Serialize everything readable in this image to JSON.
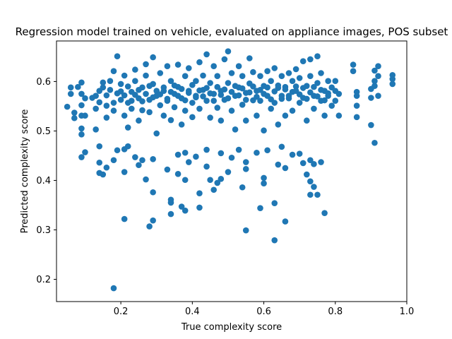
{
  "chart_data": {
    "type": "scatter",
    "title": "Regression model trained on vehicle, evaluated on appliance images, POS subset",
    "xlabel": "True complexity score",
    "ylabel": "Predicted complexity score",
    "xlim": [
      0.02,
      1.0
    ],
    "ylim": [
      0.155,
      0.682
    ],
    "xticks": [
      0.2,
      0.4,
      0.6,
      0.8,
      1.0
    ],
    "xtick_labels": [
      "0.2",
      "0.4",
      "0.6",
      "0.8",
      "1.0"
    ],
    "yticks": [
      0.2,
      0.3,
      0.4,
      0.5,
      0.6
    ],
    "ytick_labels": [
      "0.2",
      "0.3",
      "0.4",
      "0.5",
      "0.6"
    ],
    "grid": false,
    "marker_color": "#1f77b4",
    "series": [
      {
        "points": [
          [
            0.18,
            0.182
          ],
          [
            0.63,
            0.279
          ],
          [
            0.28,
            0.307
          ],
          [
            0.55,
            0.299
          ],
          [
            0.66,
            0.317
          ],
          [
            0.21,
            0.322
          ],
          [
            0.77,
            0.334
          ],
          [
            0.38,
            0.339
          ],
          [
            0.37,
            0.347
          ],
          [
            0.42,
            0.345
          ],
          [
            0.59,
            0.344
          ],
          [
            0.29,
            0.319
          ],
          [
            0.34,
            0.332
          ],
          [
            0.34,
            0.355
          ],
          [
            0.34,
            0.361
          ],
          [
            0.63,
            0.354
          ],
          [
            0.29,
            0.376
          ],
          [
            0.42,
            0.374
          ],
          [
            0.73,
            0.371
          ],
          [
            0.75,
            0.371
          ],
          [
            0.46,
            0.381
          ],
          [
            0.54,
            0.386
          ],
          [
            0.47,
            0.395
          ],
          [
            0.38,
            0.401
          ],
          [
            0.45,
            0.401
          ],
          [
            0.27,
            0.402
          ],
          [
            0.6,
            0.394
          ],
          [
            0.6,
            0.405
          ],
          [
            0.36,
            0.413
          ],
          [
            0.48,
            0.403
          ],
          [
            0.5,
            0.417
          ],
          [
            0.55,
            0.423
          ],
          [
            0.14,
            0.415
          ],
          [
            0.16,
            0.426
          ],
          [
            0.21,
            0.417
          ],
          [
            0.25,
            0.431
          ],
          [
            0.14,
            0.436
          ],
          [
            0.18,
            0.441
          ],
          [
            0.15,
            0.412
          ],
          [
            0.64,
            0.432
          ],
          [
            0.71,
            0.435
          ],
          [
            0.74,
            0.433
          ],
          [
            0.76,
            0.437
          ],
          [
            0.66,
            0.425
          ],
          [
            0.72,
            0.412
          ],
          [
            0.73,
            0.398
          ],
          [
            0.74,
            0.387
          ],
          [
            0.09,
            0.447
          ],
          [
            0.1,
            0.457
          ],
          [
            0.14,
            0.469
          ],
          [
            0.19,
            0.461
          ],
          [
            0.22,
            0.469
          ],
          [
            0.21,
            0.463
          ],
          [
            0.24,
            0.447
          ],
          [
            0.26,
            0.441
          ],
          [
            0.29,
            0.443
          ],
          [
            0.36,
            0.452
          ],
          [
            0.38,
            0.456
          ],
          [
            0.41,
            0.448
          ],
          [
            0.44,
            0.462
          ],
          [
            0.48,
            0.455
          ],
          [
            0.51,
            0.446
          ],
          [
            0.53,
            0.462
          ],
          [
            0.58,
            0.456
          ],
          [
            0.61,
            0.461
          ],
          [
            0.65,
            0.468
          ],
          [
            0.68,
            0.452
          ],
          [
            0.7,
            0.454
          ],
          [
            0.73,
            0.441
          ],
          [
            0.55,
            0.437
          ],
          [
            0.44,
            0.428
          ],
          [
            0.39,
            0.437
          ],
          [
            0.33,
            0.422
          ],
          [
            0.05,
            0.549
          ],
          [
            0.06,
            0.575
          ],
          [
            0.06,
            0.588
          ],
          [
            0.07,
            0.526
          ],
          [
            0.07,
            0.537
          ],
          [
            0.08,
            0.589
          ],
          [
            0.09,
            0.598
          ],
          [
            0.09,
            0.575
          ],
          [
            0.09,
            0.552
          ],
          [
            0.09,
            0.531
          ],
          [
            0.09,
            0.505
          ],
          [
            0.09,
            0.493
          ],
          [
            0.1,
            0.531
          ],
          [
            0.1,
            0.566
          ],
          [
            0.12,
            0.567
          ],
          [
            0.13,
            0.571
          ],
          [
            0.13,
            0.545
          ],
          [
            0.13,
            0.503
          ],
          [
            0.14,
            0.558
          ],
          [
            0.14,
            0.581
          ],
          [
            0.15,
            0.588
          ],
          [
            0.15,
            0.598
          ],
          [
            0.16,
            0.572
          ],
          [
            0.16,
            0.551
          ],
          [
            0.16,
            0.527
          ],
          [
            0.17,
            0.601
          ],
          [
            0.17,
            0.583
          ],
          [
            0.18,
            0.557
          ],
          [
            0.18,
            0.541
          ],
          [
            0.18,
            0.621
          ],
          [
            0.19,
            0.651
          ],
          [
            0.19,
            0.576
          ],
          [
            0.2,
            0.563
          ],
          [
            0.2,
            0.595
          ],
          [
            0.21,
            0.612
          ],
          [
            0.21,
            0.531
          ],
          [
            0.22,
            0.557
          ],
          [
            0.22,
            0.507
          ],
          [
            0.23,
            0.579
          ],
          [
            0.23,
            0.545
          ],
          [
            0.24,
            0.601
          ],
          [
            0.24,
            0.624
          ],
          [
            0.25,
            0.566
          ],
          [
            0.25,
            0.521
          ],
          [
            0.26,
            0.542
          ],
          [
            0.26,
            0.588
          ],
          [
            0.27,
            0.635
          ],
          [
            0.27,
            0.612
          ],
          [
            0.28,
            0.563
          ],
          [
            0.28,
            0.538
          ],
          [
            0.29,
            0.649
          ],
          [
            0.29,
            0.595
          ],
          [
            0.3,
            0.571
          ],
          [
            0.3,
            0.495
          ],
          [
            0.31,
            0.552
          ],
          [
            0.31,
            0.617
          ],
          [
            0.32,
            0.581
          ],
          [
            0.32,
            0.531
          ],
          [
            0.33,
            0.631
          ],
          [
            0.33,
            0.561
          ],
          [
            0.34,
            0.601
          ],
          [
            0.34,
            0.522
          ],
          [
            0.35,
            0.575
          ],
          [
            0.35,
            0.548
          ],
          [
            0.36,
            0.634
          ],
          [
            0.36,
            0.589
          ],
          [
            0.37,
            0.513
          ],
          [
            0.37,
            0.566
          ],
          [
            0.38,
            0.611
          ],
          [
            0.38,
            0.541
          ],
          [
            0.39,
            0.627
          ],
          [
            0.39,
            0.581
          ],
          [
            0.4,
            0.557
          ],
          [
            0.4,
            0.528
          ],
          [
            0.41,
            0.601
          ],
          [
            0.41,
            0.571
          ],
          [
            0.42,
            0.639
          ],
          [
            0.42,
            0.545
          ],
          [
            0.43,
            0.612
          ],
          [
            0.43,
            0.583
          ],
          [
            0.44,
            0.655
          ],
          [
            0.44,
            0.561
          ],
          [
            0.45,
            0.527
          ],
          [
            0.45,
            0.597
          ],
          [
            0.46,
            0.631
          ],
          [
            0.46,
            0.575
          ],
          [
            0.47,
            0.547
          ],
          [
            0.47,
            0.611
          ],
          [
            0.48,
            0.581
          ],
          [
            0.48,
            0.521
          ],
          [
            0.49,
            0.645
          ],
          [
            0.49,
            0.563
          ],
          [
            0.5,
            0.661
          ],
          [
            0.5,
            0.597
          ],
          [
            0.51,
            0.541
          ],
          [
            0.51,
            0.617
          ],
          [
            0.52,
            0.571
          ],
          [
            0.52,
            0.503
          ],
          [
            0.53,
            0.631
          ],
          [
            0.53,
            0.588
          ],
          [
            0.54,
            0.553
          ],
          [
            0.54,
            0.611
          ],
          [
            0.55,
            0.577
          ],
          [
            0.55,
            0.521
          ],
          [
            0.56,
            0.647
          ],
          [
            0.56,
            0.596
          ],
          [
            0.57,
            0.562
          ],
          [
            0.57,
            0.619
          ],
          [
            0.58,
            0.581
          ],
          [
            0.58,
            0.531
          ],
          [
            0.59,
            0.611
          ],
          [
            0.59,
            0.561
          ],
          [
            0.6,
            0.591
          ],
          [
            0.6,
            0.501
          ],
          [
            0.61,
            0.621
          ],
          [
            0.61,
            0.571
          ],
          [
            0.62,
            0.545
          ],
          [
            0.62,
            0.601
          ],
          [
            0.63,
            0.627
          ],
          [
            0.63,
            0.557
          ],
          [
            0.64,
            0.587
          ],
          [
            0.64,
            0.513
          ],
          [
            0.65,
            0.611
          ],
          [
            0.65,
            0.565
          ],
          [
            0.66,
            0.589
          ],
          [
            0.66,
            0.531
          ],
          [
            0.67,
            0.617
          ],
          [
            0.67,
            0.571
          ],
          [
            0.68,
            0.601
          ],
          [
            0.68,
            0.541
          ],
          [
            0.69,
            0.625
          ],
          [
            0.69,
            0.581
          ],
          [
            0.7,
            0.557
          ],
          [
            0.7,
            0.607
          ],
          [
            0.71,
            0.641
          ],
          [
            0.71,
            0.567
          ],
          [
            0.72,
            0.591
          ],
          [
            0.72,
            0.521
          ],
          [
            0.73,
            0.645
          ],
          [
            0.73,
            0.611
          ],
          [
            0.74,
            0.571
          ],
          [
            0.74,
            0.545
          ],
          [
            0.75,
            0.651
          ],
          [
            0.75,
            0.597
          ],
          [
            0.76,
            0.561
          ],
          [
            0.76,
            0.617
          ],
          [
            0.77,
            0.581
          ],
          [
            0.77,
            0.531
          ],
          [
            0.78,
            0.601
          ],
          [
            0.78,
            0.571
          ],
          [
            0.79,
            0.551
          ],
          [
            0.8,
            0.601
          ],
          [
            0.8,
            0.581
          ],
          [
            0.8,
            0.561
          ],
          [
            0.81,
            0.575
          ],
          [
            0.81,
            0.531
          ],
          [
            0.85,
            0.634
          ],
          [
            0.85,
            0.621
          ],
          [
            0.86,
            0.579
          ],
          [
            0.86,
            0.571
          ],
          [
            0.86,
            0.551
          ],
          [
            0.86,
            0.528
          ],
          [
            0.9,
            0.567
          ],
          [
            0.9,
            0.585
          ],
          [
            0.9,
            0.512
          ],
          [
            0.91,
            0.622
          ],
          [
            0.91,
            0.601
          ],
          [
            0.91,
            0.591
          ],
          [
            0.92,
            0.631
          ],
          [
            0.92,
            0.571
          ],
          [
            0.92,
            0.611
          ],
          [
            0.91,
            0.476
          ],
          [
            0.96,
            0.613
          ],
          [
            0.96,
            0.605
          ],
          [
            0.96,
            0.595
          ],
          [
            0.2,
            0.58
          ],
          [
            0.21,
            0.572
          ],
          [
            0.22,
            0.59
          ],
          [
            0.23,
            0.561
          ],
          [
            0.24,
            0.573
          ],
          [
            0.25,
            0.583
          ],
          [
            0.26,
            0.56
          ],
          [
            0.27,
            0.575
          ],
          [
            0.28,
            0.591
          ],
          [
            0.29,
            0.568
          ],
          [
            0.3,
            0.581
          ],
          [
            0.31,
            0.574
          ],
          [
            0.32,
            0.588
          ],
          [
            0.33,
            0.565
          ],
          [
            0.34,
            0.579
          ],
          [
            0.35,
            0.592
          ],
          [
            0.36,
            0.571
          ],
          [
            0.37,
            0.585
          ],
          [
            0.38,
            0.562
          ],
          [
            0.39,
            0.577
          ],
          [
            0.4,
            0.593
          ],
          [
            0.41,
            0.568
          ],
          [
            0.42,
            0.582
          ],
          [
            0.43,
            0.57
          ],
          [
            0.44,
            0.587
          ],
          [
            0.45,
            0.576
          ],
          [
            0.46,
            0.561
          ],
          [
            0.47,
            0.589
          ],
          [
            0.48,
            0.573
          ],
          [
            0.49,
            0.584
          ],
          [
            0.5,
            0.566
          ],
          [
            0.51,
            0.579
          ],
          [
            0.52,
            0.591
          ],
          [
            0.53,
            0.572
          ],
          [
            0.54,
            0.586
          ],
          [
            0.55,
            0.563
          ],
          [
            0.56,
            0.578
          ],
          [
            0.57,
            0.59
          ],
          [
            0.58,
            0.569
          ],
          [
            0.59,
            0.583
          ],
          [
            0.6,
            0.575
          ],
          [
            0.61,
            0.588
          ],
          [
            0.62,
            0.564
          ],
          [
            0.63,
            0.58
          ],
          [
            0.64,
            0.592
          ],
          [
            0.65,
            0.571
          ],
          [
            0.66,
            0.584
          ],
          [
            0.67,
            0.566
          ],
          [
            0.68,
            0.579
          ],
          [
            0.69,
            0.59
          ],
          [
            0.7,
            0.574
          ],
          [
            0.71,
            0.587
          ],
          [
            0.72,
            0.565
          ],
          [
            0.73,
            0.578
          ],
          [
            0.74,
            0.589
          ],
          [
            0.75,
            0.57
          ],
          [
            0.76,
            0.583
          ],
          [
            0.77,
            0.562
          ],
          [
            0.78,
            0.576
          ],
          [
            0.79,
            0.588
          ]
        ]
      }
    ]
  }
}
